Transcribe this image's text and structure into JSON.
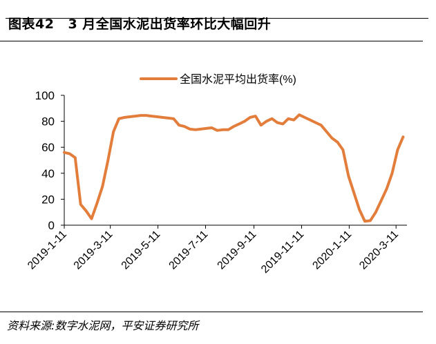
{
  "figure": {
    "number": "图表42",
    "title": "3 月全国水泥出货率环比大幅回升",
    "source": "资料来源:数字水泥网，平安证券研究所"
  },
  "colors": {
    "line": "#E27D3B",
    "axis": "#000000"
  },
  "chart_data": {
    "type": "line",
    "title": "3 月全国水泥出货率环比大幅回升",
    "xlabel": "",
    "ylabel": "",
    "ylim": [
      0,
      100
    ],
    "y_ticks": [
      0,
      20,
      40,
      60,
      80,
      100
    ],
    "x_tick_labels": [
      "2019-1-11",
      "2019-3-11",
      "2019-5-11",
      "2019-7-11",
      "2019-9-11",
      "2019-11-11",
      "2020-1-11",
      "2020-3-11"
    ],
    "grid": false,
    "legend": "top-left",
    "series": [
      {
        "name": "全国水泥平均出货率(%)",
        "x": [
          "2019-1-11",
          "2019-1-18",
          "2019-1-25",
          "2019-2-1",
          "2019-2-8",
          "2019-2-15",
          "2019-2-22",
          "2019-3-1",
          "2019-3-8",
          "2019-3-15",
          "2019-3-22",
          "2019-3-29",
          "2019-4-5",
          "2019-4-12",
          "2019-4-19",
          "2019-4-26",
          "2019-5-3",
          "2019-5-10",
          "2019-5-17",
          "2019-5-24",
          "2019-5-31",
          "2019-6-7",
          "2019-6-14",
          "2019-6-21",
          "2019-6-28",
          "2019-7-5",
          "2019-7-12",
          "2019-7-19",
          "2019-7-26",
          "2019-8-2",
          "2019-8-9",
          "2019-8-16",
          "2019-8-23",
          "2019-8-30",
          "2019-9-6",
          "2019-9-13",
          "2019-9-20",
          "2019-9-27",
          "2019-10-4",
          "2019-10-11",
          "2019-10-18",
          "2019-10-25",
          "2019-11-1",
          "2019-11-8",
          "2019-11-15",
          "2019-11-22",
          "2019-11-29",
          "2019-12-6",
          "2019-12-13",
          "2019-12-20",
          "2019-12-27",
          "2020-1-3",
          "2020-1-10",
          "2020-1-17",
          "2020-1-24",
          "2020-1-31",
          "2020-2-7",
          "2020-2-14",
          "2020-2-21",
          "2020-2-28",
          "2020-3-6",
          "2020-3-13",
          "2020-3-20"
        ],
        "values": [
          56,
          55,
          52,
          16,
          11,
          5,
          17,
          30,
          50,
          72,
          82,
          83,
          83.5,
          84,
          84.5,
          84.5,
          84,
          83.5,
          83,
          82.5,
          82,
          77,
          76,
          74,
          73.5,
          74,
          74.5,
          75,
          73,
          73.5,
          73.5,
          76,
          78,
          80,
          83,
          84,
          77,
          80,
          82,
          79,
          78,
          82,
          81,
          85,
          83,
          81,
          79,
          77,
          72,
          67,
          64,
          58,
          38,
          25,
          12,
          3,
          3.5,
          10,
          19,
          28,
          40,
          58,
          68
        ]
      }
    ]
  }
}
